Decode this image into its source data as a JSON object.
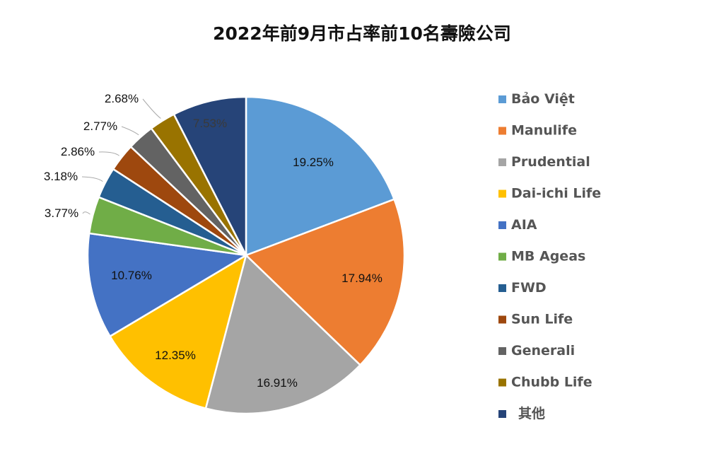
{
  "chart_data": {
    "type": "pie",
    "title": "2022年前9月市占率前10名壽險公司",
    "start": "12 o'clock, clockwise",
    "legend_position": "right",
    "categories": [
      "Bảo Việt",
      "Manulife",
      "Prudential",
      "Dai-ichi Life",
      "AIA",
      "MB Ageas",
      "FWD",
      "Sun Life",
      "Generali",
      "Chubb Life",
      "其他"
    ],
    "values": [
      19.25,
      17.94,
      16.91,
      12.35,
      10.76,
      3.77,
      3.18,
      2.86,
      2.77,
      2.68,
      7.53
    ],
    "labels": [
      "19.25%",
      "17.94%",
      "16.91%",
      "12.35%",
      "10.76%",
      "3.77%",
      "3.18%",
      "2.86%",
      "2.77%",
      "2.68%",
      "7.53%"
    ],
    "colors": [
      "#5B9BD5",
      "#ED7D31",
      "#A5A5A5",
      "#FFC000",
      "#4472C4",
      "#70AD47",
      "#255E91",
      "#9E480E",
      "#636363",
      "#997300",
      "#264478"
    ]
  }
}
